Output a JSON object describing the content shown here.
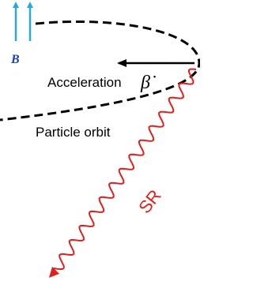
{
  "labels": {
    "field": "B",
    "acceleration": "Acceleration",
    "beta": "β̇",
    "orbit": "Particle orbit",
    "radiation": "SR"
  }
}
